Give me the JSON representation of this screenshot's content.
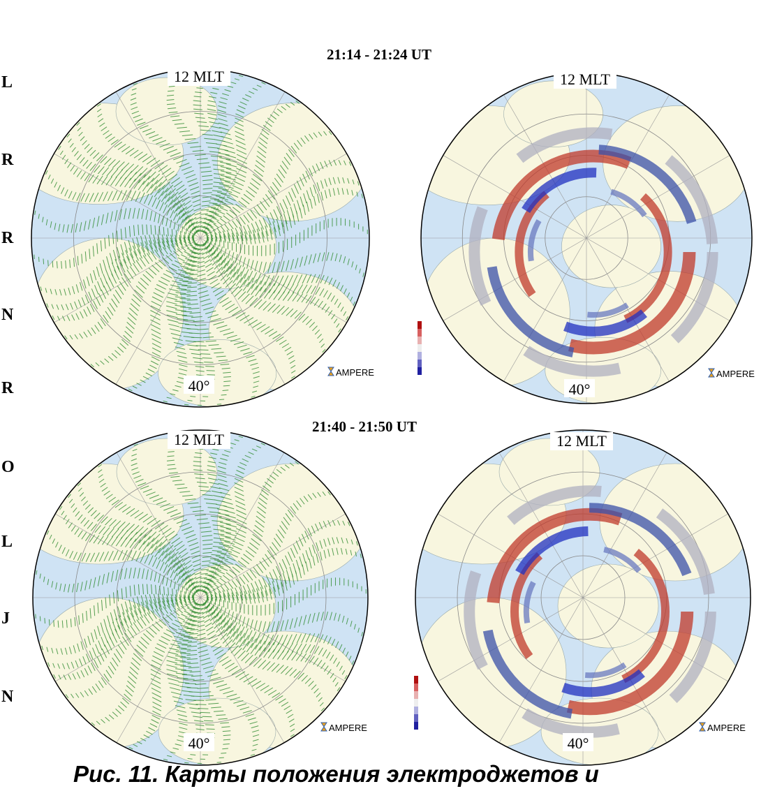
{
  "left_labels": [
    "L",
    "R",
    "R",
    "N",
    "R",
    "O",
    "L",
    "J",
    "N"
  ],
  "panels": [
    {
      "title": "21:14 - 21:24 UT",
      "maps": [
        {
          "mlt_label": "12 MLT",
          "lat_label": "40°",
          "logo": "AMPERE"
        },
        {
          "mlt_label": "12 MLT",
          "lat_label": "40°",
          "logo": "AMPERE"
        }
      ]
    },
    {
      "title": "21:40 - 21:50 UT",
      "maps": [
        {
          "mlt_label": "12 MLT",
          "lat_label": "40°",
          "logo": "AMPERE"
        },
        {
          "mlt_label": "12 MLT",
          "lat_label": "40°",
          "logo": "AMPERE"
        }
      ]
    }
  ],
  "caption": "Рис. 11. Карты положения электроджетов и"
}
